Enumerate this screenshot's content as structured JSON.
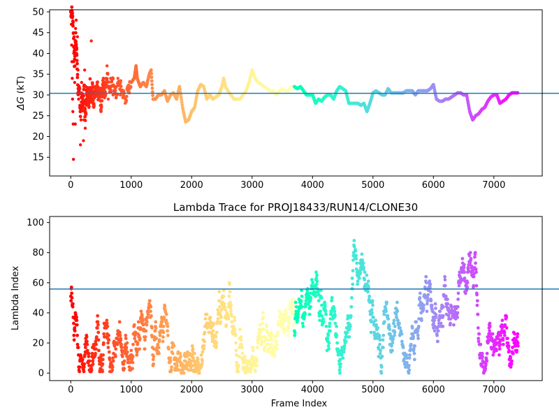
{
  "chart_data": [
    {
      "type": "scatter",
      "title": "",
      "xlabel": "",
      "ylabel": "ΔG (kT)",
      "ylabel_main": "ΔG",
      "ylabel_unit": " (kT)",
      "xlim": [
        -350,
        7800
      ],
      "ylim": [
        10.5,
        50.5
      ],
      "xticks": [
        0,
        1000,
        2000,
        3000,
        4000,
        5000,
        6000,
        7000
      ],
      "yticks": [
        15,
        20,
        25,
        30,
        35,
        40,
        45,
        50
      ],
      "hline": 30.4,
      "hline_color": "#1f77b4",
      "colormap": "rainbow",
      "grid": false,
      "trace_points": [
        [
          0,
          50
        ],
        [
          20,
          50
        ],
        [
          40,
          47
        ],
        [
          60,
          38
        ],
        [
          80,
          44
        ],
        [
          100,
          40
        ],
        [
          120,
          30
        ],
        [
          140,
          33
        ],
        [
          160,
          25
        ],
        [
          180,
          30
        ],
        [
          200,
          27
        ],
        [
          220,
          32
        ],
        [
          240,
          24
        ],
        [
          260,
          29
        ],
        [
          280,
          31
        ],
        [
          300,
          28
        ],
        [
          320,
          33
        ],
        [
          340,
          29
        ],
        [
          360,
          32
        ],
        [
          380,
          28
        ],
        [
          400,
          31
        ],
        [
          420,
          30
        ],
        [
          440,
          32
        ],
        [
          460,
          29
        ],
        [
          480,
          31
        ],
        [
          500,
          27
        ],
        [
          520,
          31
        ],
        [
          540,
          33
        ],
        [
          560,
          30
        ],
        [
          580,
          32
        ],
        [
          600,
          35
        ],
        [
          650,
          31
        ],
        [
          700,
          33
        ],
        [
          750,
          30
        ],
        [
          800,
          33
        ],
        [
          850,
          31
        ],
        [
          900,
          29
        ],
        [
          950,
          31
        ],
        [
          1000,
          33
        ],
        [
          1050,
          34
        ],
        [
          1080,
          37
        ],
        [
          1100,
          34
        ],
        [
          1150,
          32
        ],
        [
          1200,
          33
        ],
        [
          1250,
          32
        ],
        [
          1300,
          35
        ],
        [
          1330,
          36
        ],
        [
          1360,
          29
        ],
        [
          1400,
          29
        ],
        [
          1450,
          30
        ],
        [
          1500,
          30
        ],
        [
          1550,
          31
        ],
        [
          1600,
          28.5
        ],
        [
          1650,
          30
        ],
        [
          1700,
          30.5
        ],
        [
          1750,
          29
        ],
        [
          1800,
          32
        ],
        [
          1850,
          27
        ],
        [
          1900,
          23.5
        ],
        [
          1950,
          24
        ],
        [
          2000,
          26
        ],
        [
          2050,
          27
        ],
        [
          2100,
          31
        ],
        [
          2150,
          32.5
        ],
        [
          2200,
          32
        ],
        [
          2250,
          29
        ],
        [
          2300,
          30
        ],
        [
          2350,
          29
        ],
        [
          2400,
          29.5
        ],
        [
          2450,
          30
        ],
        [
          2500,
          32
        ],
        [
          2530,
          34
        ],
        [
          2560,
          32
        ],
        [
          2600,
          31
        ],
        [
          2650,
          30
        ],
        [
          2700,
          29
        ],
        [
          2750,
          29
        ],
        [
          2800,
          29
        ],
        [
          2850,
          30
        ],
        [
          2900,
          31
        ],
        [
          2950,
          33
        ],
        [
          3000,
          36
        ],
        [
          3050,
          34
        ],
        [
          3100,
          33
        ],
        [
          3150,
          32.5
        ],
        [
          3200,
          32
        ],
        [
          3250,
          31.5
        ],
        [
          3300,
          31
        ],
        [
          3350,
          31
        ],
        [
          3400,
          30
        ],
        [
          3450,
          31
        ],
        [
          3500,
          31.5
        ],
        [
          3550,
          31
        ],
        [
          3600,
          31
        ],
        [
          3650,
          32
        ],
        [
          3700,
          32
        ],
        [
          3750,
          31.5
        ],
        [
          3800,
          32
        ],
        [
          3850,
          31
        ],
        [
          3900,
          30
        ],
        [
          3950,
          30
        ],
        [
          4000,
          30
        ],
        [
          4050,
          28
        ],
        [
          4100,
          29
        ],
        [
          4150,
          28.5
        ],
        [
          4200,
          29.5
        ],
        [
          4250,
          30
        ],
        [
          4300,
          30
        ],
        [
          4350,
          29
        ],
        [
          4400,
          31
        ],
        [
          4450,
          32
        ],
        [
          4500,
          31.5
        ],
        [
          4550,
          31
        ],
        [
          4600,
          28
        ],
        [
          4650,
          28
        ],
        [
          4700,
          28
        ],
        [
          4750,
          28
        ],
        [
          4800,
          27.5
        ],
        [
          4850,
          28
        ],
        [
          4900,
          26
        ],
        [
          4950,
          28
        ],
        [
          5000,
          30.5
        ],
        [
          5050,
          31
        ],
        [
          5100,
          30.5
        ],
        [
          5150,
          30
        ],
        [
          5200,
          30
        ],
        [
          5250,
          31.5
        ],
        [
          5300,
          30.5
        ],
        [
          5350,
          30.5
        ],
        [
          5400,
          30.5
        ],
        [
          5450,
          30.5
        ],
        [
          5500,
          30.5
        ],
        [
          5550,
          31
        ],
        [
          5600,
          31
        ],
        [
          5650,
          31
        ],
        [
          5700,
          30
        ],
        [
          5750,
          31
        ],
        [
          5800,
          31
        ],
        [
          5850,
          31
        ],
        [
          5900,
          31
        ],
        [
          5950,
          31.5
        ],
        [
          6000,
          32.5
        ],
        [
          6050,
          29
        ],
        [
          6100,
          28.5
        ],
        [
          6150,
          28.5
        ],
        [
          6200,
          29
        ],
        [
          6250,
          29
        ],
        [
          6300,
          29.5
        ],
        [
          6350,
          30
        ],
        [
          6400,
          30.5
        ],
        [
          6450,
          30.5
        ],
        [
          6500,
          30
        ],
        [
          6550,
          30
        ],
        [
          6600,
          26
        ],
        [
          6650,
          24
        ],
        [
          6700,
          25
        ],
        [
          6750,
          25.5
        ],
        [
          6800,
          26.5
        ],
        [
          6850,
          27
        ],
        [
          6900,
          28.5
        ],
        [
          6950,
          29.5
        ],
        [
          7000,
          30
        ],
        [
          7050,
          30
        ],
        [
          7100,
          28
        ],
        [
          7150,
          28.5
        ],
        [
          7200,
          29
        ],
        [
          7250,
          30
        ],
        [
          7300,
          30.5
        ],
        [
          7350,
          30.5
        ],
        [
          7400,
          30.5
        ]
      ],
      "scatter_points": [
        [
          5,
          50
        ],
        [
          10,
          47
        ],
        [
          15,
          42
        ],
        [
          20,
          38
        ],
        [
          25,
          34
        ],
        [
          30,
          29
        ],
        [
          35,
          26
        ],
        [
          40,
          23
        ],
        [
          45,
          14.5
        ],
        [
          50,
          38
        ],
        [
          55,
          44
        ],
        [
          60,
          40
        ],
        [
          65,
          33
        ],
        [
          70,
          37
        ],
        [
          75,
          23
        ],
        [
          80,
          46
        ],
        [
          90,
          48
        ],
        [
          100,
          41
        ],
        [
          110,
          44
        ],
        [
          120,
          36
        ],
        [
          130,
          29
        ],
        [
          140,
          31
        ],
        [
          150,
          27
        ],
        [
          160,
          18
        ],
        [
          170,
          24
        ],
        [
          180,
          33
        ],
        [
          190,
          30
        ],
        [
          200,
          27
        ],
        [
          210,
          19
        ],
        [
          220,
          24
        ],
        [
          230,
          36
        ],
        [
          240,
          22
        ],
        [
          250,
          32
        ],
        [
          260,
          31
        ],
        [
          280,
          29
        ],
        [
          300,
          27
        ],
        [
          320,
          30
        ],
        [
          340,
          43
        ],
        [
          360,
          32
        ],
        [
          380,
          28
        ],
        [
          400,
          32
        ],
        [
          420,
          30
        ],
        [
          440,
          33
        ],
        [
          460,
          29
        ],
        [
          480,
          31
        ],
        [
          500,
          26
        ],
        [
          520,
          31
        ],
        [
          560,
          33
        ],
        [
          600,
          37
        ],
        [
          620,
          29
        ],
        [
          660,
          34
        ],
        [
          700,
          30
        ],
        [
          740,
          32
        ],
        [
          780,
          34
        ],
        [
          820,
          30
        ],
        [
          860,
          31
        ],
        [
          900,
          28
        ],
        [
          940,
          32
        ]
      ]
    },
    {
      "type": "scatter",
      "title": "Lambda Trace for PROJ18433/RUN14/CLONE30",
      "xlabel": "Frame Index",
      "ylabel": "Lambda Index",
      "xlim": [
        -350,
        7800
      ],
      "ylim": [
        -5,
        104
      ],
      "xticks": [
        0,
        1000,
        2000,
        3000,
        4000,
        5000,
        6000,
        7000
      ],
      "yticks": [
        0,
        20,
        40,
        60,
        80,
        100
      ],
      "hline": 55.8,
      "hline_color": "#1f77b4",
      "colormap": "rainbow",
      "grid": false,
      "x_max": 7400,
      "y_max": 99,
      "approx_point_count": 7400
    }
  ]
}
